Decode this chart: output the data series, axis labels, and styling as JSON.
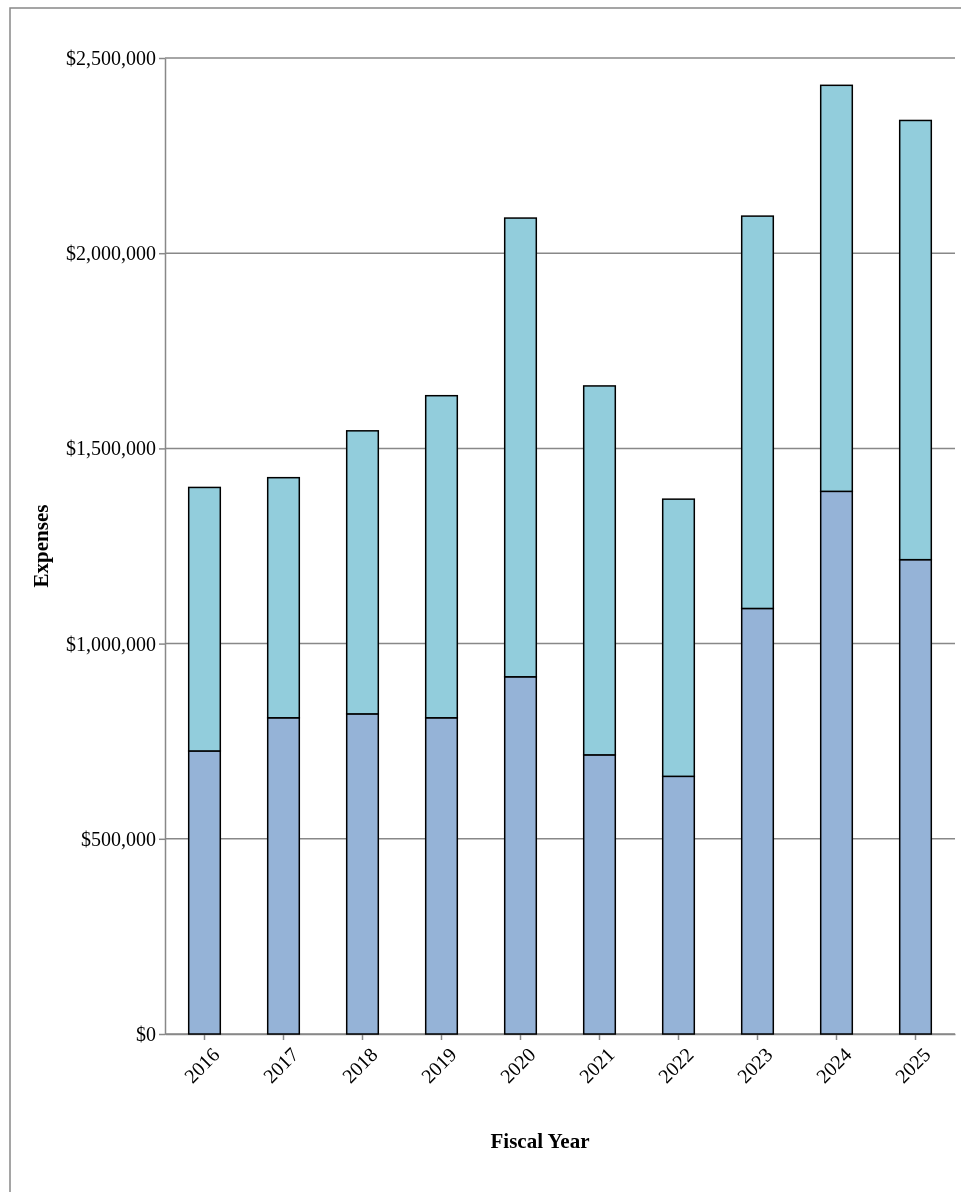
{
  "chart_data": {
    "type": "bar",
    "stacked": true,
    "xlabel": "Fiscal Year",
    "ylabel": "Expenses",
    "categories": [
      "2016",
      "2017",
      "2018",
      "2019",
      "2020",
      "2021",
      "2022",
      "2023",
      "2024",
      "2025"
    ],
    "series": [
      {
        "color": "#95b3d7",
        "values": [
          725000,
          810000,
          820000,
          810000,
          915000,
          715000,
          660000,
          1090000,
          1390000,
          1215000
        ]
      },
      {
        "color": "#92cddc",
        "values": [
          675000,
          615000,
          725000,
          825000,
          1175000,
          945000,
          710000,
          1005000,
          1040000,
          1125000
        ]
      }
    ],
    "ylim": [
      0,
      2500000
    ],
    "yticks": [
      {
        "value": 0,
        "label": "$0"
      },
      {
        "value": 500000,
        "label": "$500,000"
      },
      {
        "value": 1000000,
        "label": "$1,000,000"
      },
      {
        "value": 1500000,
        "label": "$1,500,000"
      },
      {
        "value": 2000000,
        "label": "$2,000,000"
      },
      {
        "value": 2500000,
        "label": "$2,500,000"
      }
    ],
    "grid": "y"
  }
}
